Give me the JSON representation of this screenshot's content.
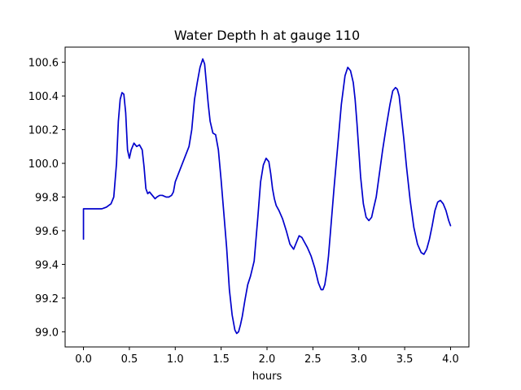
{
  "chart_data": {
    "type": "line",
    "title": "Water Depth h at gauge 110",
    "xlabel": "hours",
    "ylabel": "",
    "xlim": [
      -0.2,
      4.2
    ],
    "ylim": [
      98.91,
      100.69
    ],
    "xticks": [
      0.0,
      0.5,
      1.0,
      1.5,
      2.0,
      2.5,
      3.0,
      3.5,
      4.0
    ],
    "xtick_labels": [
      "0.0",
      "0.5",
      "1.0",
      "1.5",
      "2.0",
      "2.5",
      "3.0",
      "3.5",
      "4.0"
    ],
    "yticks": [
      99.0,
      99.2,
      99.4,
      99.6,
      99.8,
      100.0,
      100.2,
      100.4,
      100.6
    ],
    "ytick_labels": [
      "99.0",
      "99.2",
      "99.4",
      "99.6",
      "99.8",
      "100.0",
      "100.2",
      "100.4",
      "100.6"
    ],
    "grid": false,
    "color": "#0000cc",
    "series": [
      {
        "name": "",
        "x": [
          0.0,
          0.0,
          0.05,
          0.1,
          0.15,
          0.2,
          0.25,
          0.3,
          0.33,
          0.36,
          0.38,
          0.4,
          0.42,
          0.44,
          0.46,
          0.48,
          0.5,
          0.52,
          0.55,
          0.58,
          0.61,
          0.64,
          0.66,
          0.68,
          0.7,
          0.72,
          0.75,
          0.78,
          0.8,
          0.83,
          0.86,
          0.9,
          0.93,
          0.96,
          0.98,
          1.0,
          1.05,
          1.1,
          1.15,
          1.18,
          1.21,
          1.24,
          1.27,
          1.3,
          1.32,
          1.34,
          1.36,
          1.38,
          1.41,
          1.44,
          1.47,
          1.5,
          1.53,
          1.56,
          1.59,
          1.62,
          1.65,
          1.67,
          1.69,
          1.71,
          1.73,
          1.76,
          1.79,
          1.82,
          1.86,
          1.9,
          1.93,
          1.96,
          1.99,
          2.02,
          2.04,
          2.06,
          2.08,
          2.1,
          2.13,
          2.17,
          2.21,
          2.25,
          2.29,
          2.32,
          2.35,
          2.38,
          2.41,
          2.44,
          2.48,
          2.52,
          2.56,
          2.59,
          2.61,
          2.63,
          2.65,
          2.67,
          2.7,
          2.73,
          2.77,
          2.81,
          2.85,
          2.88,
          2.91,
          2.94,
          2.96,
          2.98,
          3.0,
          3.02,
          3.05,
          3.08,
          3.11,
          3.14,
          3.16,
          3.19,
          3.22,
          3.26,
          3.3,
          3.34,
          3.37,
          3.4,
          3.42,
          3.44,
          3.46,
          3.49,
          3.52,
          3.56,
          3.6,
          3.64,
          3.68,
          3.71,
          3.74,
          3.77,
          3.8,
          3.83,
          3.86,
          3.89,
          3.92,
          3.95,
          3.98,
          4.0
        ],
        "y": [
          99.55,
          99.73,
          99.73,
          99.73,
          99.73,
          99.73,
          99.74,
          99.76,
          99.8,
          100.0,
          100.25,
          100.38,
          100.42,
          100.41,
          100.3,
          100.08,
          100.03,
          100.08,
          100.12,
          100.1,
          100.11,
          100.08,
          99.98,
          99.85,
          99.82,
          99.83,
          99.81,
          99.79,
          99.8,
          99.81,
          99.81,
          99.8,
          99.8,
          99.81,
          99.83,
          99.89,
          99.96,
          100.03,
          100.1,
          100.2,
          100.38,
          100.48,
          100.57,
          100.62,
          100.59,
          100.47,
          100.35,
          100.25,
          100.18,
          100.17,
          100.08,
          99.9,
          99.7,
          99.5,
          99.25,
          99.1,
          99.01,
          98.99,
          99.0,
          99.04,
          99.09,
          99.19,
          99.28,
          99.33,
          99.42,
          99.68,
          99.89,
          99.99,
          100.03,
          100.01,
          99.94,
          99.85,
          99.79,
          99.75,
          99.72,
          99.67,
          99.6,
          99.52,
          99.49,
          99.53,
          99.57,
          99.56,
          99.53,
          99.5,
          99.45,
          99.38,
          99.29,
          99.25,
          99.25,
          99.28,
          99.35,
          99.45,
          99.65,
          99.85,
          100.1,
          100.35,
          100.52,
          100.57,
          100.55,
          100.48,
          100.38,
          100.24,
          100.08,
          99.92,
          99.76,
          99.68,
          99.66,
          99.68,
          99.73,
          99.8,
          99.92,
          100.08,
          100.22,
          100.35,
          100.43,
          100.45,
          100.44,
          100.4,
          100.3,
          100.15,
          99.98,
          99.78,
          99.62,
          99.52,
          99.47,
          99.46,
          99.49,
          99.55,
          99.63,
          99.72,
          99.77,
          99.78,
          99.76,
          99.72,
          99.66,
          99.63
        ]
      }
    ]
  }
}
